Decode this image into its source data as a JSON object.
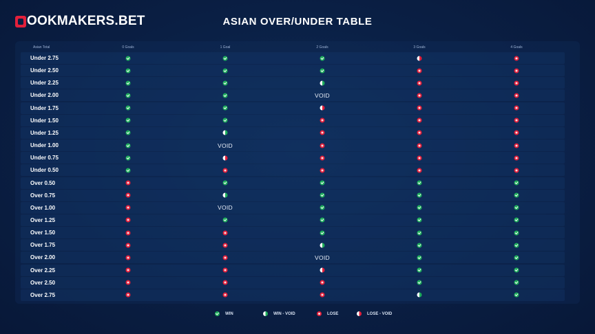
{
  "brand": {
    "logo_text": "OOKMAKERS.BET"
  },
  "page": {
    "title": "ASIAN OVER/UNDER TABLE"
  },
  "table": {
    "headers": [
      "Asian Total",
      "0 Goals",
      "1 Goal",
      "2 Goals",
      "3 Goals",
      "4 Goals"
    ],
    "void_text": "VOID",
    "rows": [
      {
        "label": "Under 2.75",
        "cells": [
          "win",
          "win",
          "win",
          "losevoid",
          "lose"
        ]
      },
      {
        "label": "Under 2.50",
        "cells": [
          "win",
          "win",
          "win",
          "lose",
          "lose"
        ]
      },
      {
        "label": "Under 2.25",
        "cells": [
          "win",
          "win",
          "winvoid",
          "lose",
          "lose"
        ]
      },
      {
        "label": "Under 2.00",
        "cells": [
          "win",
          "win",
          "void",
          "lose",
          "lose"
        ]
      },
      {
        "label": "Under 1.75",
        "cells": [
          "win",
          "win",
          "losevoid",
          "lose",
          "lose"
        ]
      },
      {
        "label": "Under 1.50",
        "cells": [
          "win",
          "win",
          "lose",
          "lose",
          "lose"
        ]
      },
      {
        "label": "Under 1.25",
        "cells": [
          "win",
          "winvoid",
          "lose",
          "lose",
          "lose"
        ]
      },
      {
        "label": "Under 1.00",
        "cells": [
          "win",
          "void",
          "lose",
          "lose",
          "lose"
        ]
      },
      {
        "label": "Under 0.75",
        "cells": [
          "win",
          "losevoid",
          "lose",
          "lose",
          "lose"
        ]
      },
      {
        "label": "Under 0.50",
        "cells": [
          "win",
          "lose",
          "lose",
          "lose",
          "lose"
        ]
      },
      {
        "label": "Over 0.50",
        "cells": [
          "lose",
          "win",
          "win",
          "win",
          "win"
        ]
      },
      {
        "label": "Over 0.75",
        "cells": [
          "lose",
          "winvoid",
          "win",
          "win",
          "win"
        ]
      },
      {
        "label": "Over 1.00",
        "cells": [
          "lose",
          "void",
          "win",
          "win",
          "win"
        ]
      },
      {
        "label": "Over 1.25",
        "cells": [
          "lose",
          "win",
          "win",
          "win",
          "win"
        ]
      },
      {
        "label": "Over 1.50",
        "cells": [
          "lose",
          "lose",
          "win",
          "win",
          "win"
        ]
      },
      {
        "label": "Over 1.75",
        "cells": [
          "lose",
          "lose",
          "winvoid",
          "win",
          "win"
        ]
      },
      {
        "label": "Over 2.00",
        "cells": [
          "lose",
          "lose",
          "void",
          "win",
          "win"
        ]
      },
      {
        "label": "Over 2.25",
        "cells": [
          "lose",
          "lose",
          "losevoid",
          "win",
          "win"
        ]
      },
      {
        "label": "Over 2.50",
        "cells": [
          "lose",
          "lose",
          "lose",
          "win",
          "win"
        ]
      },
      {
        "label": "Over 2.75",
        "cells": [
          "lose",
          "lose",
          "lose",
          "winvoid",
          "win"
        ]
      }
    ]
  },
  "legend": [
    {
      "key": "win",
      "label": "WIN"
    },
    {
      "key": "winvoid",
      "label": "WIN - VOID"
    },
    {
      "key": "lose",
      "label": "LOSE"
    },
    {
      "key": "losevoid",
      "label": "LOSE - VOID"
    }
  ],
  "colors": {
    "background": "#0a1f44",
    "win": "#1fae5c",
    "lose": "#e3203b",
    "brand": "#e3203b"
  },
  "icons": {
    "win": "check-circle-icon",
    "winvoid": "half-check-circle-icon",
    "lose": "cross-circle-icon",
    "losevoid": "half-cross-circle-icon",
    "logo": "house-b-logo-icon"
  }
}
